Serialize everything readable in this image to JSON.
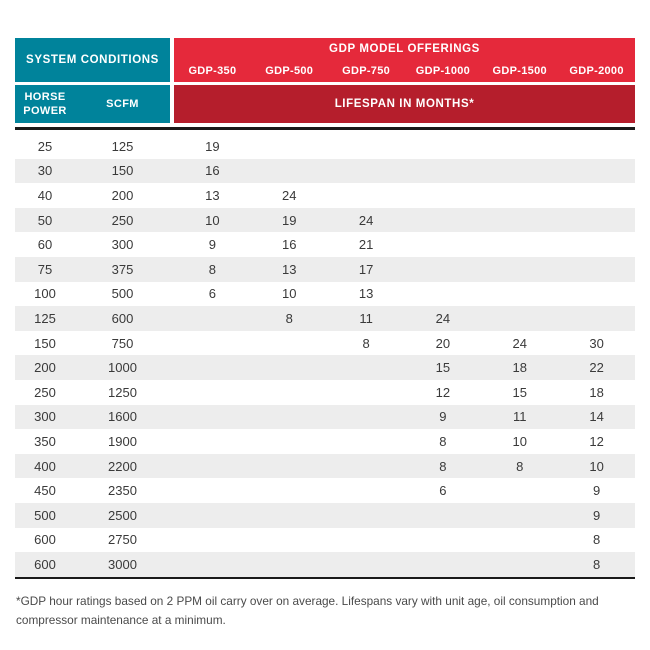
{
  "colors": {
    "teal": "#00839B",
    "red": "#E5293B",
    "dark_red": "#B51E2C",
    "row_alt": "#EDEDED",
    "line": "#1A1A1A",
    "text": "#3A3A3A"
  },
  "header": {
    "system_conditions": "SYSTEM CONDITIONS",
    "gdp_title": "GDP MODEL OFFERINGS",
    "models": [
      "GDP-350",
      "GDP-500",
      "GDP-750",
      "GDP-1000",
      "GDP-1500",
      "GDP-2000"
    ],
    "horse_power": "HORSE POWER",
    "scfm": "SCFM",
    "lifespan": "LIFESPAN IN MONTHS*"
  },
  "chart_data": {
    "type": "table",
    "title": "GDP Model Offerings — Lifespan in Months",
    "columns": [
      "HORSE POWER",
      "SCFM",
      "GDP-350",
      "GDP-500",
      "GDP-750",
      "GDP-1000",
      "GDP-1500",
      "GDP-2000"
    ],
    "rows": [
      [
        "25",
        "125",
        "19",
        "",
        "",
        "",
        "",
        ""
      ],
      [
        "30",
        "150",
        "16",
        "",
        "",
        "",
        "",
        ""
      ],
      [
        "40",
        "200",
        "13",
        "24",
        "",
        "",
        "",
        ""
      ],
      [
        "50",
        "250",
        "10",
        "19",
        "24",
        "",
        "",
        ""
      ],
      [
        "60",
        "300",
        "9",
        "16",
        "21",
        "",
        "",
        ""
      ],
      [
        "75",
        "375",
        "8",
        "13",
        "17",
        "",
        "",
        ""
      ],
      [
        "100",
        "500",
        "6",
        "10",
        "13",
        "",
        "",
        ""
      ],
      [
        "125",
        "600",
        "",
        "8",
        "11",
        "24",
        "",
        ""
      ],
      [
        "150",
        "750",
        "",
        "",
        "8",
        "20",
        "24",
        "30"
      ],
      [
        "200",
        "1000",
        "",
        "",
        "",
        "15",
        "18",
        "22"
      ],
      [
        "250",
        "1250",
        "",
        "",
        "",
        "12",
        "15",
        "18"
      ],
      [
        "300",
        "1600",
        "",
        "",
        "",
        "9",
        "11",
        "14"
      ],
      [
        "350",
        "1900",
        "",
        "",
        "",
        "8",
        "10",
        "12"
      ],
      [
        "400",
        "2200",
        "",
        "",
        "",
        "8",
        "8",
        "10"
      ],
      [
        "450",
        "2350",
        "",
        "",
        "",
        "6",
        "",
        "9"
      ],
      [
        "500",
        "2500",
        "",
        "",
        "",
        "",
        "",
        "9"
      ],
      [
        "600",
        "2750",
        "",
        "",
        "",
        "",
        "",
        "8"
      ],
      [
        "600",
        "3000",
        "",
        "",
        "",
        "",
        "",
        "8"
      ]
    ]
  },
  "footnote": "*GDP hour ratings based on 2 PPM oil carry over on average. Lifespans vary with unit age, oil consumption and compressor maintenance at a minimum."
}
